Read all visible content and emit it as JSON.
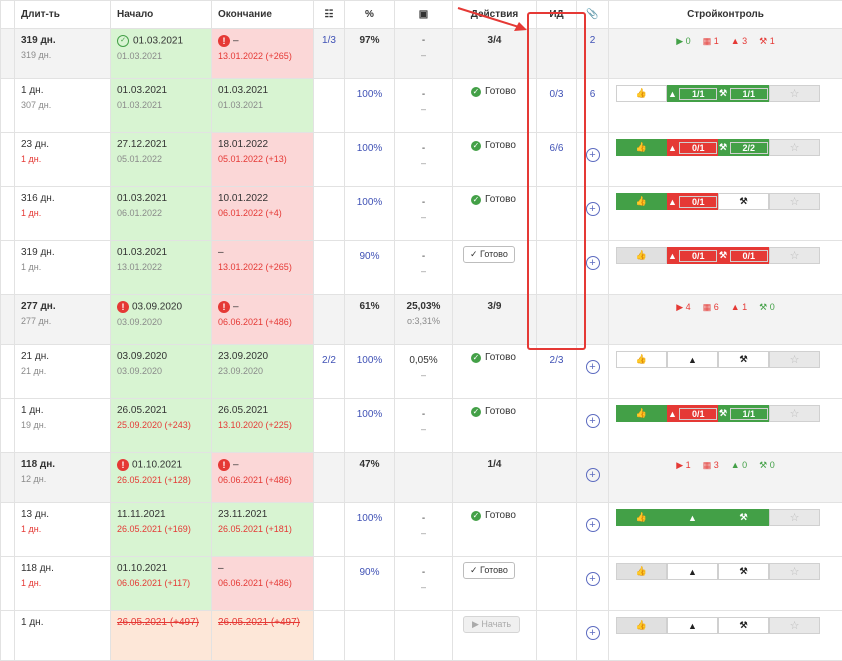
{
  "headers": {
    "duration": "Длит-ть",
    "start": "Начало",
    "end": "Окончание",
    "list_icon": "☷",
    "percent": "%",
    "archive_icon": "▣",
    "actions": "Действия",
    "id": "ИД",
    "attach_icon": "📎",
    "control": "Стройконтроль"
  },
  "rows": [
    {
      "type": "group",
      "dur": "319 дн.",
      "dur_sub": "319 дн.",
      "start": "01.03.2021",
      "start_sub": "01.03.2021",
      "end": "–",
      "end_sub": "13.01.2022 (+265)",
      "list": "1/3",
      "pct": "97%",
      "arch": "-",
      "arch_sub": "–",
      "act": "3/4",
      "id": "",
      "attach": "2",
      "control": {
        "play": "0",
        "cal": "1",
        "warn": "3",
        "hammer": "1"
      }
    },
    {
      "type": "task",
      "dur": "1 дн.",
      "dur_sub": "307 дн.",
      "start": "01.03.2021",
      "start_sub": "01.03.2021",
      "end": "01.03.2021",
      "end_sub": "01.03.2021",
      "list": "",
      "pct": "100%",
      "arch": "-",
      "arch_sub": "–",
      "act": "Готово",
      "id": "0/3",
      "attach": "6",
      "control": {
        "like": "",
        "warn": "1/1",
        "hammer": "1/1",
        "star": "☆"
      }
    },
    {
      "type": "task",
      "dur": "23 дн.",
      "dur_sub": "1 дн.",
      "start": "27.12.2021",
      "start_sub": "05.01.2022",
      "end": "18.01.2022",
      "end_sub": "05.01.2022 (+13)",
      "list": "",
      "pct": "100%",
      "arch": "-",
      "arch_sub": "–",
      "act": "Готово",
      "id": "6/6",
      "attach": "+",
      "control": {
        "like": "",
        "warn": "0/1",
        "hammer": "2/2",
        "star": "☆"
      }
    },
    {
      "type": "task",
      "dur": "316 дн.",
      "dur_sub": "1 дн.",
      "start": "01.03.2021",
      "start_sub": "06.01.2022",
      "end": "10.01.2022",
      "end_sub": "06.01.2022 (+4)",
      "list": "",
      "pct": "100%",
      "arch": "-",
      "arch_sub": "–",
      "act": "Готово",
      "id": "",
      "attach": "+",
      "control": {
        "like": "",
        "warn": "0/1",
        "hammer": "",
        "star": "☆"
      }
    },
    {
      "type": "task",
      "dur": "319 дн.",
      "dur_sub": "1 дн.",
      "start": "01.03.2021",
      "start_sub": "13.01.2022",
      "end": "–",
      "end_sub": "13.01.2022 (+265)",
      "list": "",
      "pct": "90%",
      "arch": "-",
      "arch_sub": "–",
      "act": "Готово",
      "id": "",
      "attach": "+",
      "control": {
        "like": "",
        "warn": "0/1",
        "hammer": "0/1",
        "star": "☆"
      }
    },
    {
      "type": "group",
      "dur": "277 дн.",
      "dur_sub": "277 дн.",
      "start": "03.09.2020",
      "start_sub": "03.09.2020",
      "end": "–",
      "end_sub": "06.06.2021 (+486)",
      "list": "",
      "pct": "61%",
      "arch": "25,03%",
      "arch_sub": "о:3,31%",
      "act": "3/9",
      "id": "",
      "attach": "",
      "control": {
        "play": "4",
        "cal": "6",
        "warn": "1",
        "hammer": "0"
      }
    },
    {
      "type": "task",
      "dur": "21 дн.",
      "dur_sub": "21 дн.",
      "start": "03.09.2020",
      "start_sub": "03.09.2020",
      "end": "23.09.2020",
      "end_sub": "23.09.2020",
      "list": "2/2",
      "pct": "100%",
      "arch": "0,05%",
      "arch_sub": "–",
      "act": "Готово",
      "id": "2/3",
      "attach": "+",
      "control": {
        "like": "",
        "warn": "",
        "hammer": "",
        "star": "☆"
      }
    },
    {
      "type": "task",
      "dur": "1 дн.",
      "dur_sub": "19 дн.",
      "start": "26.05.2021",
      "start_sub": "25.09.2020 (+243)",
      "end": "26.05.2021",
      "end_sub": "13.10.2020 (+225)",
      "list": "",
      "pct": "100%",
      "arch": "-",
      "arch_sub": "–",
      "act": "Готово",
      "id": "",
      "attach": "+",
      "control": {
        "like": "",
        "warn": "0/1",
        "hammer": "1/1",
        "star": "☆"
      }
    },
    {
      "type": "group",
      "dur": "118 дн.",
      "dur_sub": "12 дн.",
      "start": "01.10.2021",
      "start_sub": "26.05.2021 (+128)",
      "end": "–",
      "end_sub": "06.06.2021 (+486)",
      "list": "",
      "pct": "47%",
      "arch": "",
      "arch_sub": "",
      "act": "1/4",
      "id": "",
      "attach": "+",
      "control": {
        "play": "1",
        "cal": "3",
        "warn": "0",
        "hammer": "0"
      }
    },
    {
      "type": "task",
      "dur": "13 дн.",
      "dur_sub": "1 дн.",
      "start": "11.11.2021",
      "start_sub": "26.05.2021 (+169)",
      "end": "23.11.2021",
      "end_sub": "26.05.2021 (+181)",
      "list": "",
      "pct": "100%",
      "arch": "-",
      "arch_sub": "–",
      "act": "Готово",
      "id": "",
      "attach": "+",
      "control": {
        "like": "",
        "warn": "",
        "hammer": "",
        "star": "☆"
      }
    },
    {
      "type": "task",
      "dur": "118 дн.",
      "dur_sub": "1 дн.",
      "start": "01.10.2021",
      "start_sub": "06.06.2021 (+117)",
      "end": "–",
      "end_sub": "06.06.2021 (+486)",
      "list": "",
      "pct": "90%",
      "arch": "-",
      "arch_sub": "–",
      "act": "Готово",
      "id": "",
      "attach": "+",
      "control": {
        "like": "",
        "warn": "",
        "hammer": "",
        "star": "☆"
      }
    },
    {
      "type": "task",
      "dur": "1 дн.",
      "dur_sub": "",
      "start": "26.05.2021 (+497)",
      "start_sub": "",
      "end": "26.05.2021 (+497)",
      "end_sub": "",
      "list": "",
      "pct": "",
      "arch": "",
      "arch_sub": "",
      "act": "Начать",
      "id": "",
      "attach": "+",
      "control": {
        "like": "",
        "warn": "",
        "hammer": "",
        "star": "☆"
      }
    }
  ]
}
